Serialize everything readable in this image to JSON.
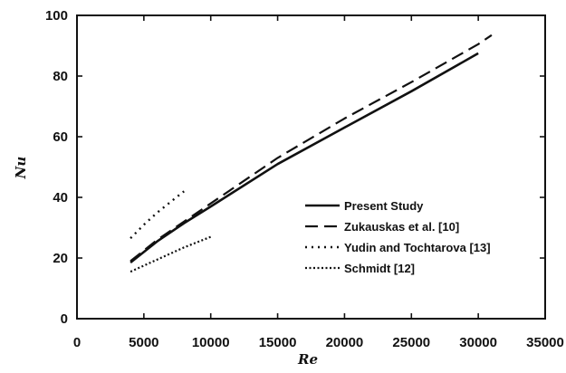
{
  "chart_data": {
    "type": "line",
    "title": "",
    "xlabel": "Re",
    "ylabel": "Nu",
    "xlim": [
      0,
      35000
    ],
    "ylim": [
      0,
      100
    ],
    "xticks": [
      0,
      5000,
      10000,
      15000,
      20000,
      25000,
      30000,
      35000
    ],
    "yticks": [
      0,
      20,
      40,
      60,
      80,
      100
    ],
    "grid": false,
    "legend_position": "lower-right",
    "series": [
      {
        "name": "Present  Study",
        "style": "solid",
        "color": "#111111",
        "x": [
          4000,
          6000,
          8000,
          10000,
          15000,
          20000,
          25000,
          30000
        ],
        "y": [
          18.5,
          25.5,
          31.5,
          37,
          51,
          63,
          75,
          87.5
        ]
      },
      {
        "name": "Zukauskas et al. [10]",
        "style": "dash",
        "color": "#111111",
        "x": [
          4000,
          6000,
          8000,
          10000,
          15000,
          20000,
          25000,
          30000,
          31000
        ],
        "y": [
          19,
          26,
          32,
          38,
          53,
          66,
          78,
          90.5,
          93.5
        ]
      },
      {
        "name": "Yudin and Tochtarova [13]",
        "style": "dot",
        "color": "#111111",
        "x": [
          4000,
          5000,
          6000,
          7000,
          8000
        ],
        "y": [
          26.5,
          31,
          35,
          38.5,
          42
        ]
      },
      {
        "name": "Schmidt [12]",
        "style": "dense-dot",
        "color": "#111111",
        "x": [
          4000,
          6000,
          8000,
          10000
        ],
        "y": [
          15.5,
          19.5,
          23.5,
          27
        ]
      }
    ]
  }
}
